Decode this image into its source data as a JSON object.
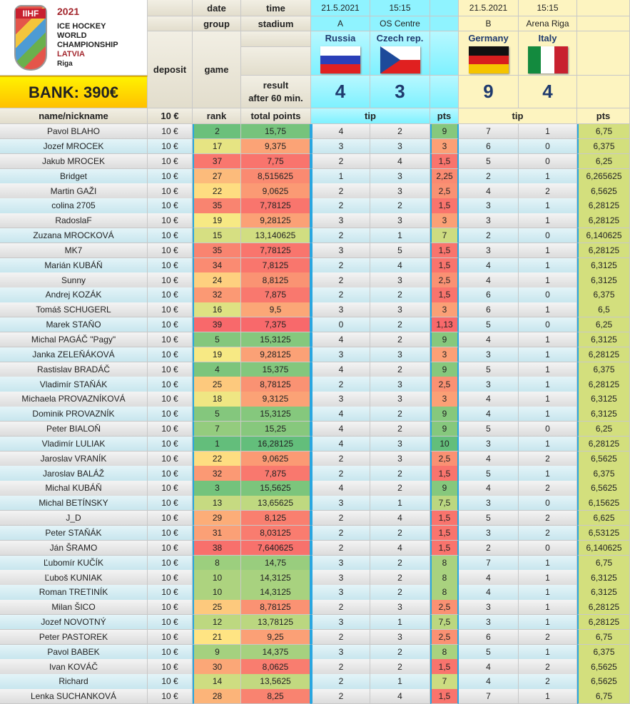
{
  "logo": {
    "brand": "IIHF",
    "year": "2021",
    "line1": "ICE HOCKEY",
    "line2": "WORLD",
    "line3": "CHAMPIONSHIP",
    "country": "LATVIA",
    "city": "Riga"
  },
  "bank": "BANK: 390€",
  "header": {
    "date": "date",
    "time": "time",
    "group": "group",
    "stadium": "stadium",
    "deposit": "deposit",
    "game": "game",
    "result1": "result",
    "result2": "after 60 min.",
    "name": "name/nickname",
    "deposit_amount": "10 €",
    "rank": "rank",
    "total": "total points",
    "tip": "tip",
    "pts": "pts"
  },
  "games": [
    {
      "date": "21.5.2021",
      "time": "15:15",
      "group": "A",
      "stadium": "OS Centre",
      "home": "Russia",
      "away": "Czech rep.",
      "home_score": "4",
      "away_score": "3",
      "home_flag": "russia",
      "away_flag": "czech-republic"
    },
    {
      "date": "21.5.2021",
      "time": "15:15",
      "group": "B",
      "stadium": "Arena Riga",
      "home": "Germany",
      "away": "Italy",
      "home_score": "9",
      "away_score": "4",
      "home_flag": "germany",
      "away_flag": "italy"
    }
  ],
  "colors": {
    "green": "#63be7b",
    "yellow": "#ffeb84",
    "red": "#f8696b",
    "pts2": "#d3df7d",
    "cyan": "#8ff3ff",
    "gold": "#ffd400"
  },
  "columns": [
    "name",
    "deposit",
    "rank",
    "total",
    "tip1_home",
    "tip1_away",
    "pts1",
    "tip2_home",
    "tip2_away",
    "pts2"
  ],
  "rows": [
    [
      "Pavol BLAHO",
      "10 €",
      "2",
      "15,75",
      "4",
      "2",
      "9",
      "7",
      "1",
      "6,75"
    ],
    [
      "Jozef MROCEK",
      "10 €",
      "17",
      "9,375",
      "3",
      "3",
      "3",
      "6",
      "0",
      "6,375"
    ],
    [
      "Jakub MROCEK",
      "10 €",
      "37",
      "7,75",
      "2",
      "4",
      "1,5",
      "5",
      "0",
      "6,25"
    ],
    [
      "Bridget",
      "10 €",
      "27",
      "8,515625",
      "1",
      "3",
      "2,25",
      "2",
      "1",
      "6,265625"
    ],
    [
      "Martin GAŽI",
      "10 €",
      "22",
      "9,0625",
      "2",
      "3",
      "2,5",
      "4",
      "2",
      "6,5625"
    ],
    [
      "colina 2705",
      "10 €",
      "35",
      "7,78125",
      "2",
      "2",
      "1,5",
      "3",
      "1",
      "6,28125"
    ],
    [
      "RadoslaF",
      "10 €",
      "19",
      "9,28125",
      "3",
      "3",
      "3",
      "3",
      "1",
      "6,28125"
    ],
    [
      "Zuzana MROCKOVÁ",
      "10 €",
      "15",
      "13,140625",
      "2",
      "1",
      "7",
      "2",
      "0",
      "6,140625"
    ],
    [
      "MK7",
      "10 €",
      "35",
      "7,78125",
      "3",
      "5",
      "1,5",
      "3",
      "1",
      "6,28125"
    ],
    [
      "Marián KUBÁŇ",
      "10 €",
      "34",
      "7,8125",
      "2",
      "4",
      "1,5",
      "4",
      "1",
      "6,3125"
    ],
    [
      "Sunny",
      "10 €",
      "24",
      "8,8125",
      "2",
      "3",
      "2,5",
      "4",
      "1",
      "6,3125"
    ],
    [
      "Andrej KOZÁK",
      "10 €",
      "32",
      "7,875",
      "2",
      "2",
      "1,5",
      "6",
      "0",
      "6,375"
    ],
    [
      "Tomáš SCHUGERL",
      "10 €",
      "16",
      "9,5",
      "3",
      "3",
      "3",
      "6",
      "1",
      "6,5"
    ],
    [
      "Marek STAŇO",
      "10 €",
      "39",
      "7,375",
      "0",
      "2",
      "1,13",
      "5",
      "0",
      "6,25"
    ],
    [
      "Michal PAGÁČ \"Pagy\"",
      "10 €",
      "5",
      "15,3125",
      "4",
      "2",
      "9",
      "4",
      "1",
      "6,3125"
    ],
    [
      "Janka ZELEŇÁKOVÁ",
      "10 €",
      "19",
      "9,28125",
      "3",
      "3",
      "3",
      "3",
      "1",
      "6,28125"
    ],
    [
      "Rastislav BRADÁČ",
      "10 €",
      "4",
      "15,375",
      "4",
      "2",
      "9",
      "5",
      "1",
      "6,375"
    ],
    [
      "Vladimír STAŇÁK",
      "10 €",
      "25",
      "8,78125",
      "2",
      "3",
      "2,5",
      "3",
      "1",
      "6,28125"
    ],
    [
      "Michaela PROVAZNÍKOVÁ",
      "10 €",
      "18",
      "9,3125",
      "3",
      "3",
      "3",
      "4",
      "1",
      "6,3125"
    ],
    [
      "Dominik PROVAZNÍK",
      "10 €",
      "5",
      "15,3125",
      "4",
      "2",
      "9",
      "4",
      "1",
      "6,3125"
    ],
    [
      "Peter BIALOŇ",
      "10 €",
      "7",
      "15,25",
      "4",
      "2",
      "9",
      "5",
      "0",
      "6,25"
    ],
    [
      "Vladimír LULIAK",
      "10 €",
      "1",
      "16,28125",
      "4",
      "3",
      "10",
      "3",
      "1",
      "6,28125"
    ],
    [
      "Jaroslav VRANÍK",
      "10 €",
      "22",
      "9,0625",
      "2",
      "3",
      "2,5",
      "4",
      "2",
      "6,5625"
    ],
    [
      "Jaroslav BALÁŽ",
      "10 €",
      "32",
      "7,875",
      "2",
      "2",
      "1,5",
      "5",
      "1",
      "6,375"
    ],
    [
      "Michal KUBÁŇ",
      "10 €",
      "3",
      "15,5625",
      "4",
      "2",
      "9",
      "4",
      "2",
      "6,5625"
    ],
    [
      "Michal BETÍNSKY",
      "10 €",
      "13",
      "13,65625",
      "3",
      "1",
      "7,5",
      "3",
      "0",
      "6,15625"
    ],
    [
      "J_D",
      "10 €",
      "29",
      "8,125",
      "2",
      "4",
      "1,5",
      "5",
      "2",
      "6,625"
    ],
    [
      "Peter STAŇÁK",
      "10 €",
      "31",
      "8,03125",
      "2",
      "2",
      "1,5",
      "3",
      "2",
      "6,53125"
    ],
    [
      "Ján ŠRAMO",
      "10 €",
      "38",
      "7,640625",
      "2",
      "4",
      "1,5",
      "2",
      "0",
      "6,140625"
    ],
    [
      "Ľubomír KUČÍK",
      "10 €",
      "8",
      "14,75",
      "3",
      "2",
      "8",
      "7",
      "1",
      "6,75"
    ],
    [
      "Ľuboš KUNIAK",
      "10 €",
      "10",
      "14,3125",
      "3",
      "2",
      "8",
      "4",
      "1",
      "6,3125"
    ],
    [
      "Roman TRETINÍK",
      "10 €",
      "10",
      "14,3125",
      "3",
      "2",
      "8",
      "4",
      "1",
      "6,3125"
    ],
    [
      "Milan ŠICO",
      "10 €",
      "25",
      "8,78125",
      "2",
      "3",
      "2,5",
      "3",
      "1",
      "6,28125"
    ],
    [
      "Jozef NOVOTNÝ",
      "10 €",
      "12",
      "13,78125",
      "3",
      "1",
      "7,5",
      "3",
      "1",
      "6,28125"
    ],
    [
      "Peter PASTOREK",
      "10 €",
      "21",
      "9,25",
      "2",
      "3",
      "2,5",
      "6",
      "2",
      "6,75"
    ],
    [
      "Pavol BABEK",
      "10 €",
      "9",
      "14,375",
      "3",
      "2",
      "8",
      "5",
      "1",
      "6,375"
    ],
    [
      "Ivan KOVÁČ",
      "10 €",
      "30",
      "8,0625",
      "2",
      "2",
      "1,5",
      "4",
      "2",
      "6,5625"
    ],
    [
      "Richard",
      "10 €",
      "14",
      "13,5625",
      "2",
      "1",
      "7",
      "4",
      "2",
      "6,5625"
    ],
    [
      "Lenka SUCHANKOVÁ",
      "10 €",
      "28",
      "8,25",
      "2",
      "4",
      "1,5",
      "7",
      "1",
      "6,75"
    ]
  ]
}
